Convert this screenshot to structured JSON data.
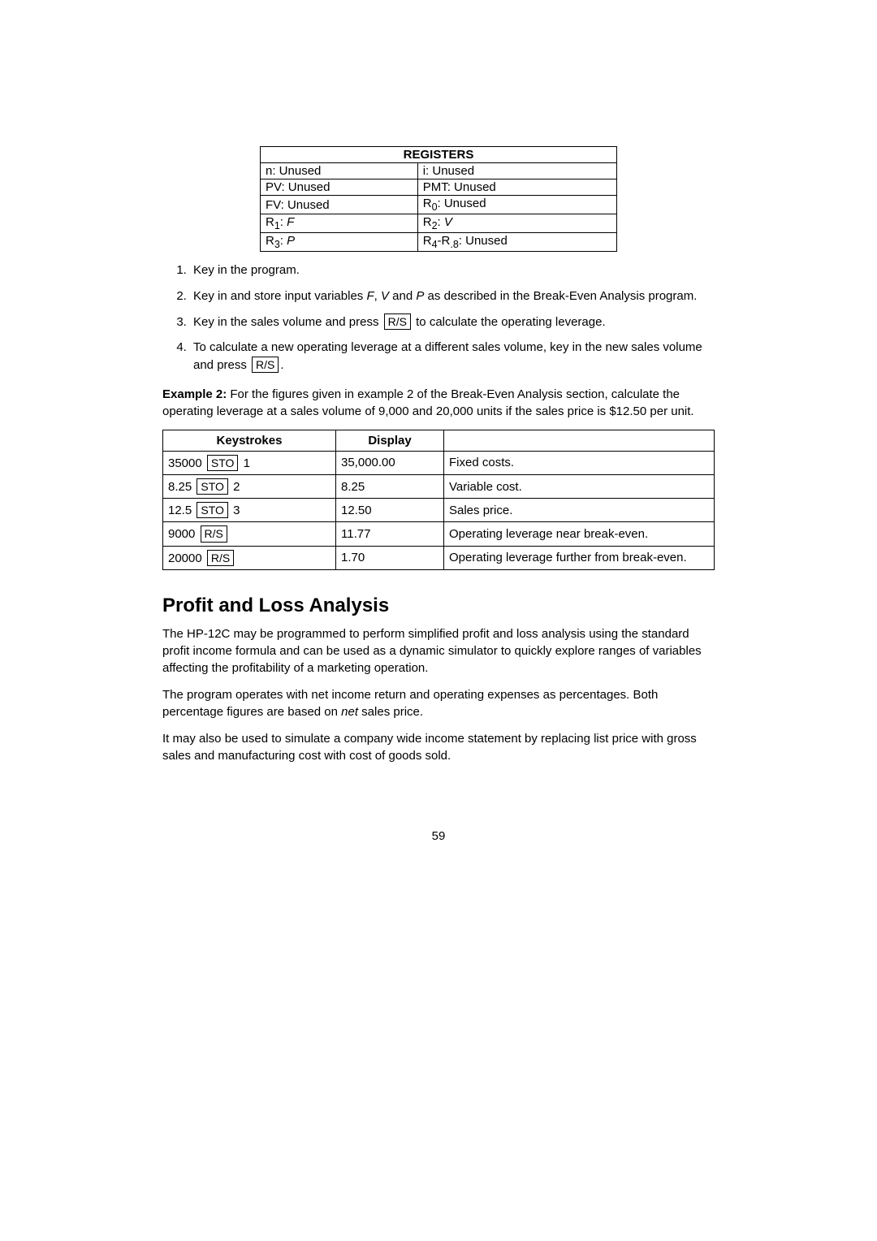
{
  "registers": {
    "header": "REGISTERS",
    "rows": [
      [
        "n: Unused",
        "i: Unused"
      ],
      [
        "PV: Unused",
        "PMT: Unused"
      ],
      [
        "FV: Unused",
        "R<sub>0</sub>: Unused"
      ],
      [
        "R<sub>1</sub>: <i>F</i>",
        "R<sub>2</sub>: <i>V</i>"
      ],
      [
        "R<sub>3</sub>: <i>P</i>",
        "R<sub>4</sub>-R<sub>.8</sub>: Unused"
      ]
    ]
  },
  "steps": [
    "Key in the program.",
    "Key in and store input variables <i>F</i>, <i>V</i> and <i>P</i> as described in the Break-Even Analysis program.",
    "Key in the sales volume and press <span class='key'>R/S</span> to calculate the operating leverage.",
    "To calculate a new operating leverage at a different sales volume, key in the new sales volume and press <span class='key'>R/S</span>."
  ],
  "example": {
    "label": "Example 2:",
    "text": "For the figures given in example 2 of the Break-Even Analysis section, calculate the operating leverage at a sales volume of 9,000 and 20,000 units if the sales price is $12.50 per unit."
  },
  "ks": {
    "headers": [
      "Keystrokes",
      "Display",
      ""
    ],
    "rows": [
      {
        "k": "35000 <span class='key'>STO</span> 1",
        "d": "35,000.00",
        "desc": "Fixed costs."
      },
      {
        "k": "8.25 <span class='key'>STO</span> 2",
        "d": "8.25",
        "desc": "Variable cost."
      },
      {
        "k": "12.5 <span class='key'>STO</span> 3",
        "d": "12.50",
        "desc": "Sales price."
      },
      {
        "k": "9000 <span class='key'>R/S</span>",
        "d": "11.77",
        "desc": "Operating leverage near break-even."
      },
      {
        "k": "20000 <span class='key'>R/S</span>",
        "d": "1.70",
        "desc": "Operating leverage further from break-even."
      }
    ]
  },
  "section": {
    "title": "Profit and Loss Analysis",
    "p1": "The HP-12C may be programmed to perform simplified profit and loss analysis using the standard profit income formula and can be used as a dynamic simulator to quickly explore ranges of variables affecting the profitability of a marketing operation.",
    "p2": "The program operates with net income return and operating expenses as percentages. Both percentage figures are based on <i>net</i> sales price.",
    "p3": "It may also be used to simulate a company wide income statement by replacing list price with gross sales and manufacturing cost with cost of goods sold."
  },
  "pagenum": "59"
}
